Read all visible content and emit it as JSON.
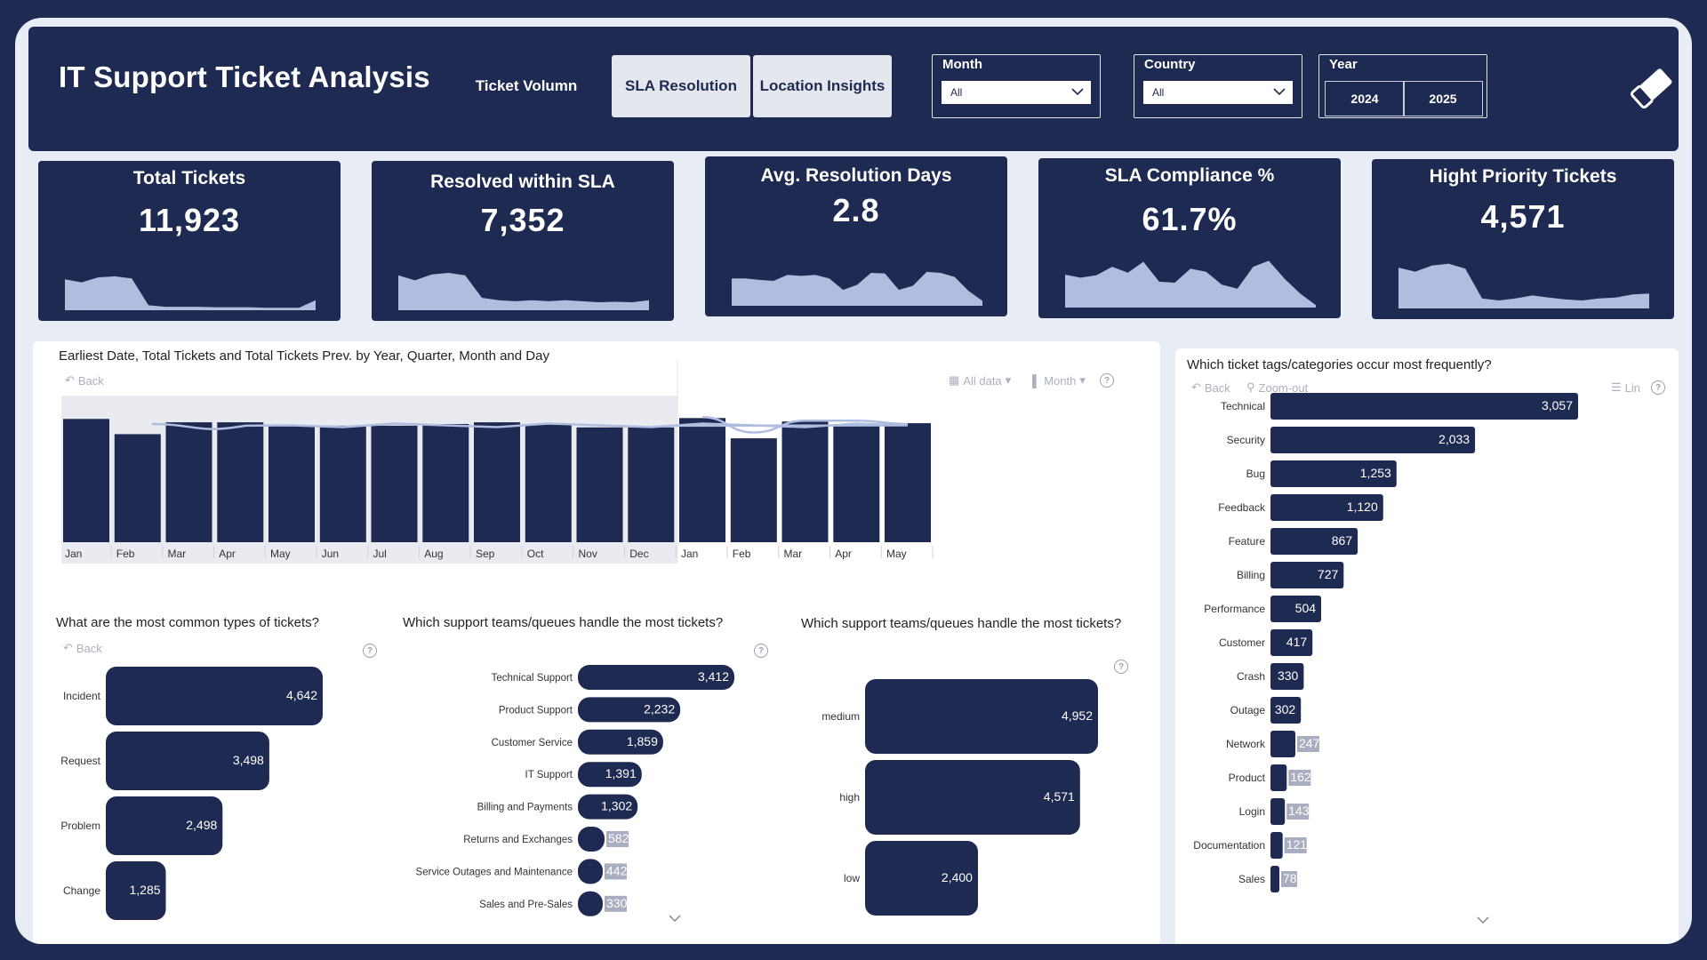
{
  "header": {
    "title": "IT Support Ticket Analysis",
    "nav": [
      "Ticket Volumn",
      "SLA Resolution",
      "Location Insights"
    ],
    "filters": {
      "month": {
        "label": "Month",
        "value": "All"
      },
      "country": {
        "label": "Country",
        "value": "All"
      },
      "year": {
        "label": "Year",
        "options": [
          "2024",
          "2025"
        ]
      }
    },
    "clear_icon": "eraser-icon"
  },
  "kpis": [
    {
      "title": "Total Tickets",
      "value": "11,923",
      "trend": [
        0.62,
        0.56,
        0.66,
        0.68,
        0.64,
        0.1,
        0.07,
        0.07,
        0.07,
        0.06,
        0.06,
        0.06,
        0.05,
        0.05,
        0.05,
        0.2
      ]
    },
    {
      "title": "Resolved within SLA",
      "value": "7,352",
      "trend": [
        0.7,
        0.6,
        0.72,
        0.75,
        0.7,
        0.25,
        0.2,
        0.18,
        0.2,
        0.18,
        0.2,
        0.18,
        0.16,
        0.17,
        0.16,
        0.2
      ]
    },
    {
      "title": "Avg. Resolution Days",
      "value": "2.8",
      "trend": [
        0.55,
        0.55,
        0.52,
        0.5,
        0.62,
        0.6,
        0.62,
        0.55,
        0.32,
        0.42,
        0.66,
        0.65,
        0.32,
        0.4,
        0.68,
        0.66,
        0.58,
        0.3,
        0.1
      ]
    },
    {
      "title": "SLA Compliance %",
      "value": "61.7%",
      "trend": [
        0.66,
        0.6,
        0.65,
        0.82,
        0.7,
        0.92,
        0.52,
        0.5,
        0.78,
        0.72,
        0.46,
        0.38,
        0.82,
        0.94,
        0.58,
        0.28,
        0.05
      ]
    },
    {
      "title": "Hight Priority Tickets",
      "value": "4,571",
      "trend": [
        0.82,
        0.74,
        0.86,
        0.9,
        0.8,
        0.2,
        0.16,
        0.2,
        0.26,
        0.22,
        0.18,
        0.16,
        0.2,
        0.22,
        0.28,
        0.3
      ]
    }
  ],
  "timeline": {
    "title": "Earliest Date, Total Tickets and Total Tickets Prev. by Year, Quarter, Month and Day",
    "back": "Back",
    "all_data": "All data",
    "month_ctrl": "Month"
  },
  "types_chart": {
    "title": "What are the most common types of tickets?",
    "back": "Back"
  },
  "queues_chart": {
    "title": "Which support teams/queues handle the most tickets?"
  },
  "priority_chart": {
    "title": "Which support teams/queues handle the most tickets?"
  },
  "tags_chart": {
    "title": "Which ticket tags/categories occur most frequently?",
    "back": "Back",
    "zoom_out": "Zoom-out",
    "lin": "Lin"
  },
  "chart_data": [
    {
      "type": "bar",
      "categories": [
        "Jan",
        "Feb",
        "Mar",
        "Apr",
        "May",
        "Jun",
        "Jul",
        "Aug",
        "Sep",
        "Oct",
        "Nov",
        "Dec",
        "Jan",
        "Feb",
        "Mar",
        "Apr",
        "May"
      ],
      "years": [
        {
          "label": "2024",
          "count": 12
        },
        {
          "label": "2025",
          "count": 5
        }
      ],
      "series": [
        {
          "name": "Total Tickets",
          "type": "bar",
          "values": [
            730,
            640,
            710,
            710,
            690,
            690,
            690,
            700,
            710,
            700,
            680,
            680,
            735,
            615,
            715,
            700,
            705
          ]
        },
        {
          "name": "Total Tickets Prev.",
          "type": "line",
          "values": [
            null,
            null,
            null,
            null,
            null,
            null,
            null,
            null,
            null,
            null,
            null,
            null,
            730,
            640,
            710,
            710,
            690
          ]
        }
      ],
      "ylim": [
        0,
        800
      ]
    },
    {
      "type": "bar",
      "orientation": "horizontal",
      "categories": [
        "Incident",
        "Request",
        "Problem",
        "Change"
      ],
      "values": [
        4642,
        3498,
        2498,
        1285
      ],
      "labels": [
        "4,642",
        "3,498",
        "2,498",
        "1,285"
      ]
    },
    {
      "type": "bar",
      "orientation": "horizontal",
      "categories": [
        "Technical Support",
        "Product Support",
        "Customer Service",
        "IT Support",
        "Billing and Payments",
        "Returns and Exchanges",
        "Service Outages and Maintenance",
        "Sales and Pre-Sales"
      ],
      "values": [
        3412,
        2232,
        1859,
        1391,
        1302,
        582,
        442,
        330
      ],
      "labels": [
        "3,412",
        "2,232",
        "1,859",
        "1,391",
        "1,302",
        "582",
        "442",
        "330"
      ]
    },
    {
      "type": "bar",
      "orientation": "horizontal",
      "categories": [
        "medium",
        "high",
        "low"
      ],
      "values": [
        4952,
        4571,
        2400
      ],
      "labels": [
        "4,952",
        "4,571",
        "2,400"
      ]
    },
    {
      "type": "bar",
      "orientation": "horizontal",
      "categories": [
        "Technical",
        "Security",
        "Bug",
        "Feedback",
        "Feature",
        "Billing",
        "Performance",
        "Customer",
        "Crash",
        "Outage",
        "Network",
        "Product",
        "Login",
        "Documentation",
        "Sales"
      ],
      "values": [
        3057,
        2033,
        1253,
        1120,
        867,
        727,
        504,
        417,
        330,
        302,
        247,
        162,
        143,
        121,
        78
      ],
      "labels": [
        "3,057",
        "2,033",
        "1,253",
        "1,120",
        "867",
        "727",
        "504",
        "417",
        "330",
        "302",
        "247",
        "162",
        "143",
        "121",
        "78"
      ]
    }
  ]
}
